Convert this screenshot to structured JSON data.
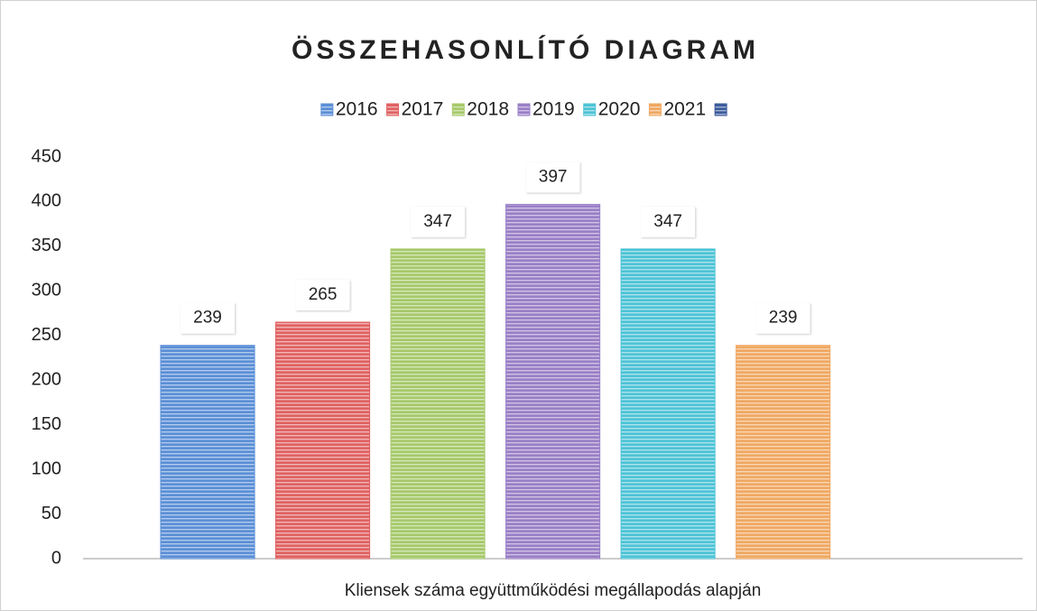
{
  "chart_data": {
    "type": "bar",
    "title": "ÖSSZEHASONLÍTÓ DIAGRAM",
    "categories": [
      "Kliensek száma együttműködési megállapodás alapján"
    ],
    "series": [
      {
        "name": "2016",
        "color": "#5b8fd6",
        "values": [
          239
        ]
      },
      {
        "name": "2017",
        "color": "#e06262",
        "values": [
          265
        ]
      },
      {
        "name": "2018",
        "color": "#a6c96a",
        "values": [
          347
        ]
      },
      {
        "name": "2019",
        "color": "#9a7fc6",
        "values": [
          397
        ]
      },
      {
        "name": "2020",
        "color": "#4ec3d6",
        "values": [
          347
        ]
      },
      {
        "name": "2021",
        "color": "#f0a862",
        "values": [
          239
        ]
      },
      {
        "name": null,
        "color": "#3c5c9c",
        "values": [
          null
        ]
      }
    ],
    "ylim": [
      0,
      450
    ],
    "yticks": [
      0,
      50,
      100,
      150,
      200,
      250,
      300,
      350,
      400,
      450
    ],
    "grid": false,
    "legend": "top"
  }
}
